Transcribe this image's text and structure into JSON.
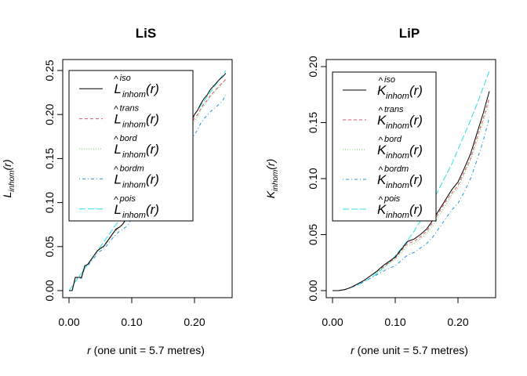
{
  "colors": {
    "iso": "#000000",
    "trans": "#DF536B",
    "bord": "#61D04F",
    "bordm": "#2297E6",
    "pois": "#28E2E5"
  },
  "chart_data": [
    {
      "type": "line",
      "title": "LiS",
      "xlabel_var": "r",
      "xlabel_rest": " (one unit = 5.7 metres)",
      "ylabel_main": "L",
      "ylabel_sub": "inhom",
      "ylabel_arg": "(r)",
      "xlim": [
        0,
        0.25
      ],
      "ylim": [
        0,
        0.25
      ],
      "x_ticks": [
        0.0,
        0.1,
        0.2
      ],
      "x_tick_labels": [
        "0.00",
        "0.10",
        "0.20"
      ],
      "y_ticks": [
        0.0,
        0.05,
        0.1,
        0.15,
        0.2,
        0.25
      ],
      "y_tick_labels": [
        "0.00",
        "0.05",
        "0.10",
        "0.15",
        "0.20",
        "0.25"
      ],
      "legend_position": "top-left",
      "legend": [
        {
          "symbol": "L",
          "sup": "iso",
          "sub": "inhom",
          "arg": "(r)",
          "key": "iso",
          "dash": "solid"
        },
        {
          "symbol": "L",
          "sup": "trans",
          "sub": "inhom",
          "arg": "(r)",
          "key": "trans",
          "dash": "dashed"
        },
        {
          "symbol": "L",
          "sup": "bord",
          "sub": "inhom",
          "arg": "(r)",
          "key": "bord",
          "dash": "dotted"
        },
        {
          "symbol": "L",
          "sup": "bordm",
          "sub": "inhom",
          "arg": "(r)",
          "key": "bordm",
          "dash": "dotdash"
        },
        {
          "symbol": "L",
          "sup": "pois",
          "sub": "inhom",
          "arg": "(r)",
          "key": "pois",
          "dash": "longdash"
        }
      ],
      "series": [
        {
          "key": "iso",
          "x": [
            0.0,
            0.005,
            0.01,
            0.015,
            0.02,
            0.025,
            0.03,
            0.035,
            0.04,
            0.045,
            0.05,
            0.055,
            0.06,
            0.065,
            0.07,
            0.075,
            0.08,
            0.085,
            0.09,
            0.095,
            0.1,
            0.105,
            0.11,
            0.115,
            0.12,
            0.125,
            0.13,
            0.135,
            0.14,
            0.145,
            0.15,
            0.155,
            0.16,
            0.165,
            0.17,
            0.175,
            0.18,
            0.185,
            0.19,
            0.195,
            0.2,
            0.205,
            0.21,
            0.215,
            0.22,
            0.225,
            0.23,
            0.235,
            0.24,
            0.245,
            0.25
          ],
          "y": [
            0.0,
            0.0,
            0.015,
            0.015,
            0.015,
            0.028,
            0.03,
            0.035,
            0.04,
            0.045,
            0.048,
            0.05,
            0.055,
            0.06,
            0.065,
            0.07,
            0.072,
            0.075,
            0.08,
            0.085,
            0.092,
            0.1,
            0.105,
            0.108,
            0.112,
            0.118,
            0.12,
            0.125,
            0.13,
            0.135,
            0.14,
            0.145,
            0.16,
            0.165,
            0.17,
            0.172,
            0.175,
            0.18,
            0.185,
            0.192,
            0.2,
            0.205,
            0.212,
            0.218,
            0.222,
            0.228,
            0.232,
            0.236,
            0.24,
            0.243,
            0.247
          ]
        },
        {
          "key": "trans",
          "x": [
            0.0,
            0.005,
            0.01,
            0.015,
            0.02,
            0.025,
            0.03,
            0.035,
            0.04,
            0.045,
            0.05,
            0.055,
            0.06,
            0.065,
            0.07,
            0.075,
            0.08,
            0.085,
            0.09,
            0.095,
            0.1,
            0.105,
            0.11,
            0.115,
            0.12,
            0.125,
            0.13,
            0.135,
            0.14,
            0.145,
            0.15,
            0.155,
            0.16,
            0.165,
            0.17,
            0.175,
            0.18,
            0.185,
            0.19,
            0.195,
            0.2,
            0.205,
            0.21,
            0.215,
            0.22,
            0.225,
            0.23,
            0.235,
            0.24,
            0.245,
            0.25
          ],
          "y": [
            0.0,
            0.0,
            0.015,
            0.015,
            0.015,
            0.028,
            0.03,
            0.035,
            0.04,
            0.045,
            0.048,
            0.05,
            0.055,
            0.06,
            0.065,
            0.069,
            0.072,
            0.075,
            0.08,
            0.085,
            0.091,
            0.099,
            0.104,
            0.107,
            0.111,
            0.117,
            0.119,
            0.124,
            0.128,
            0.133,
            0.138,
            0.143,
            0.157,
            0.162,
            0.166,
            0.169,
            0.172,
            0.177,
            0.182,
            0.188,
            0.196,
            0.2,
            0.207,
            0.212,
            0.216,
            0.221,
            0.225,
            0.229,
            0.233,
            0.236,
            0.24
          ]
        },
        {
          "key": "bord",
          "x": [
            0.0,
            0.005,
            0.01,
            0.015,
            0.02,
            0.025,
            0.03,
            0.035,
            0.04,
            0.045,
            0.05,
            0.055,
            0.06,
            0.065,
            0.07,
            0.075,
            0.08,
            0.085,
            0.09,
            0.095,
            0.1,
            0.105,
            0.11,
            0.115,
            0.12,
            0.125,
            0.13,
            0.135,
            0.14,
            0.145,
            0.15,
            0.155,
            0.16,
            0.165,
            0.17,
            0.175,
            0.18,
            0.185,
            0.19,
            0.195,
            0.2,
            0.205,
            0.21,
            0.215,
            0.22,
            0.225,
            0.23,
            0.235,
            0.24,
            0.245,
            0.25
          ],
          "y": [
            0.0,
            0.0,
            0.015,
            0.015,
            0.015,
            0.027,
            0.03,
            0.034,
            0.039,
            0.044,
            0.047,
            0.049,
            0.054,
            0.059,
            0.064,
            0.068,
            0.071,
            0.074,
            0.079,
            0.084,
            0.09,
            0.097,
            0.102,
            0.105,
            0.109,
            0.115,
            0.117,
            0.121,
            0.125,
            0.13,
            0.135,
            0.14,
            0.153,
            0.158,
            0.16,
            0.163,
            0.167,
            0.172,
            0.178,
            0.185,
            0.192,
            0.198,
            0.205,
            0.21,
            0.215,
            0.22,
            0.224,
            0.228,
            0.232,
            0.236,
            0.24
          ]
        },
        {
          "key": "bordm",
          "x": [
            0.0,
            0.005,
            0.01,
            0.015,
            0.02,
            0.025,
            0.03,
            0.035,
            0.04,
            0.045,
            0.05,
            0.055,
            0.06,
            0.065,
            0.07,
            0.075,
            0.08,
            0.085,
            0.09,
            0.095,
            0.1,
            0.105,
            0.11,
            0.115,
            0.12,
            0.125,
            0.13,
            0.135,
            0.14,
            0.145,
            0.15,
            0.155,
            0.16,
            0.165,
            0.17,
            0.175,
            0.18,
            0.185,
            0.19,
            0.195,
            0.2,
            0.205,
            0.21,
            0.215,
            0.22,
            0.225,
            0.23,
            0.235,
            0.24,
            0.245,
            0.25
          ],
          "y": [
            0.0,
            0.0,
            0.014,
            0.014,
            0.014,
            0.026,
            0.028,
            0.033,
            0.037,
            0.042,
            0.045,
            0.047,
            0.051,
            0.056,
            0.06,
            0.064,
            0.067,
            0.069,
            0.072,
            0.076,
            0.082,
            0.09,
            0.095,
            0.099,
            0.103,
            0.108,
            0.11,
            0.114,
            0.118,
            0.123,
            0.127,
            0.131,
            0.14,
            0.145,
            0.15,
            0.153,
            0.155,
            0.16,
            0.165,
            0.17,
            0.177,
            0.183,
            0.19,
            0.195,
            0.199,
            0.203,
            0.206,
            0.209,
            0.212,
            0.216,
            0.222
          ]
        },
        {
          "key": "pois",
          "x": [
            0.0,
            0.01,
            0.02,
            0.03,
            0.04,
            0.05,
            0.06,
            0.07,
            0.08,
            0.09,
            0.1,
            0.11,
            0.12,
            0.13,
            0.14,
            0.15,
            0.16,
            0.17,
            0.18,
            0.19,
            0.2,
            0.21,
            0.22,
            0.23,
            0.24,
            0.25
          ],
          "y": [
            0.0,
            0.01,
            0.02,
            0.03,
            0.04,
            0.05,
            0.06,
            0.07,
            0.08,
            0.09,
            0.1,
            0.11,
            0.12,
            0.13,
            0.14,
            0.15,
            0.16,
            0.17,
            0.18,
            0.19,
            0.2,
            0.21,
            0.22,
            0.23,
            0.24,
            0.25
          ]
        }
      ]
    },
    {
      "type": "line",
      "title": "LiP",
      "xlabel_var": "r",
      "xlabel_rest": " (one unit = 5.7 metres)",
      "ylabel_main": "K",
      "ylabel_sub": "inhom",
      "ylabel_arg": "(r)",
      "xlim": [
        0,
        0.25
      ],
      "ylim": [
        0,
        0.2
      ],
      "x_ticks": [
        0.0,
        0.1,
        0.2
      ],
      "x_tick_labels": [
        "0.00",
        "0.10",
        "0.20"
      ],
      "y_ticks": [
        0.0,
        0.05,
        0.1,
        0.15,
        0.2
      ],
      "y_tick_labels": [
        "0.00",
        "0.05",
        "0.10",
        "0.15",
        "0.20"
      ],
      "legend_position": "top-left",
      "legend": [
        {
          "symbol": "K",
          "sup": "iso",
          "sub": "inhom",
          "arg": "(r)",
          "key": "iso",
          "dash": "solid"
        },
        {
          "symbol": "K",
          "sup": "trans",
          "sub": "inhom",
          "arg": "(r)",
          "key": "trans",
          "dash": "dashed"
        },
        {
          "symbol": "K",
          "sup": "bord",
          "sub": "inhom",
          "arg": "(r)",
          "key": "bord",
          "dash": "dotted"
        },
        {
          "symbol": "K",
          "sup": "bordm",
          "sub": "inhom",
          "arg": "(r)",
          "key": "bordm",
          "dash": "dotdash"
        },
        {
          "symbol": "K",
          "sup": "pois",
          "sub": "inhom",
          "arg": "(r)",
          "key": "pois",
          "dash": "longdash"
        }
      ],
      "series": [
        {
          "key": "iso",
          "x": [
            0.0,
            0.01,
            0.02,
            0.03,
            0.04,
            0.05,
            0.06,
            0.07,
            0.08,
            0.09,
            0.1,
            0.11,
            0.12,
            0.13,
            0.14,
            0.15,
            0.16,
            0.17,
            0.18,
            0.19,
            0.2,
            0.21,
            0.22,
            0.23,
            0.24,
            0.25
          ],
          "y": [
            0.0,
            0.0,
            0.001,
            0.003,
            0.006,
            0.009,
            0.013,
            0.017,
            0.022,
            0.026,
            0.03,
            0.037,
            0.044,
            0.046,
            0.05,
            0.055,
            0.063,
            0.072,
            0.081,
            0.09,
            0.097,
            0.109,
            0.122,
            0.14,
            0.158,
            0.178
          ]
        },
        {
          "key": "trans",
          "x": [
            0.0,
            0.01,
            0.02,
            0.03,
            0.04,
            0.05,
            0.06,
            0.07,
            0.08,
            0.09,
            0.1,
            0.11,
            0.12,
            0.13,
            0.14,
            0.15,
            0.16,
            0.17,
            0.18,
            0.19,
            0.2,
            0.21,
            0.22,
            0.23,
            0.24,
            0.25
          ],
          "y": [
            0.0,
            0.0,
            0.001,
            0.003,
            0.006,
            0.009,
            0.013,
            0.017,
            0.021,
            0.025,
            0.029,
            0.036,
            0.042,
            0.044,
            0.048,
            0.053,
            0.061,
            0.07,
            0.079,
            0.087,
            0.094,
            0.106,
            0.118,
            0.136,
            0.153,
            0.172
          ]
        },
        {
          "key": "bord",
          "x": [
            0.0,
            0.01,
            0.02,
            0.03,
            0.04,
            0.05,
            0.06,
            0.07,
            0.08,
            0.09,
            0.1,
            0.11,
            0.12,
            0.13,
            0.14,
            0.15,
            0.16,
            0.17,
            0.18,
            0.19,
            0.2,
            0.21,
            0.22,
            0.23,
            0.24,
            0.25
          ],
          "y": [
            0.0,
            0.0,
            0.001,
            0.003,
            0.006,
            0.009,
            0.013,
            0.016,
            0.02,
            0.024,
            0.028,
            0.034,
            0.04,
            0.042,
            0.046,
            0.051,
            0.058,
            0.067,
            0.076,
            0.085,
            0.092,
            0.104,
            0.116,
            0.133,
            0.15,
            0.17
          ]
        },
        {
          "key": "bordm",
          "x": [
            0.0,
            0.01,
            0.02,
            0.03,
            0.04,
            0.05,
            0.06,
            0.07,
            0.08,
            0.09,
            0.1,
            0.11,
            0.12,
            0.13,
            0.14,
            0.15,
            0.16,
            0.17,
            0.18,
            0.19,
            0.2,
            0.21,
            0.22,
            0.23,
            0.24,
            0.25
          ],
          "y": [
            0.0,
            0.0,
            0.001,
            0.003,
            0.005,
            0.008,
            0.011,
            0.014,
            0.017,
            0.02,
            0.022,
            0.027,
            0.032,
            0.034,
            0.038,
            0.042,
            0.048,
            0.056,
            0.064,
            0.072,
            0.078,
            0.088,
            0.1,
            0.116,
            0.133,
            0.155
          ]
        },
        {
          "key": "pois",
          "x": [
            0.0,
            0.01,
            0.02,
            0.03,
            0.04,
            0.05,
            0.06,
            0.07,
            0.08,
            0.09,
            0.1,
            0.11,
            0.12,
            0.13,
            0.14,
            0.15,
            0.16,
            0.17,
            0.18,
            0.19,
            0.2,
            0.21,
            0.22,
            0.23,
            0.24,
            0.25
          ],
          "y": [
            0.0,
            0.0,
            0.001,
            0.003,
            0.005,
            0.008,
            0.011,
            0.015,
            0.02,
            0.025,
            0.031,
            0.038,
            0.045,
            0.053,
            0.062,
            0.071,
            0.08,
            0.091,
            0.102,
            0.113,
            0.126,
            0.139,
            0.152,
            0.166,
            0.181,
            0.196
          ]
        }
      ]
    }
  ]
}
